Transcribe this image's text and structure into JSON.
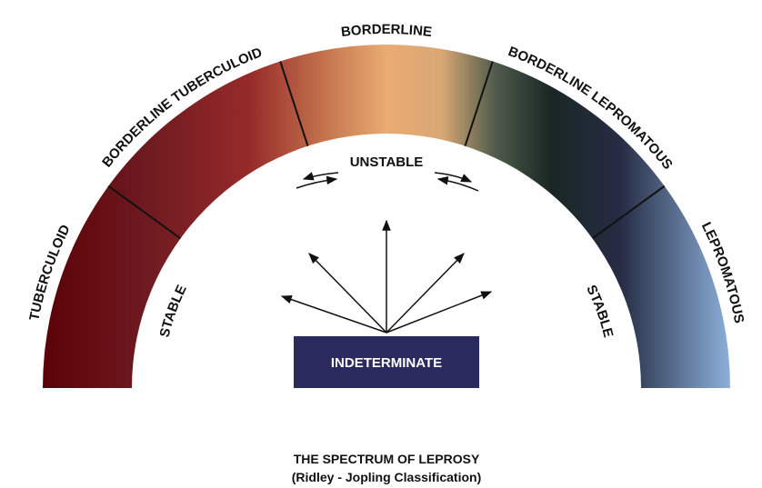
{
  "spectrum": {
    "segments": [
      "TUBERCULOID",
      "BORDERLINE TUBERCULOID",
      "BORDERLINE",
      "BORDERLINE LEPROMATOUS",
      "LEPROMATOUS"
    ],
    "inner_labels": {
      "left": "STABLE",
      "center": "UNSTABLE",
      "right": "STABLE"
    },
    "origin": "INDETERMINATE"
  },
  "footer": {
    "title": "THE SPECTRUM OF LEPROSY",
    "subtitle": "(Ridley - Jopling Classification)"
  }
}
